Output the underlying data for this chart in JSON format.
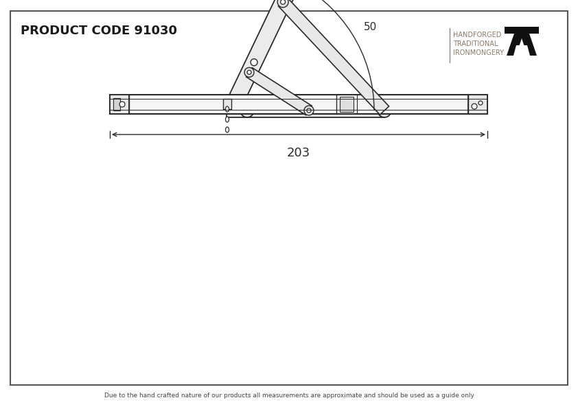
{
  "title": "PRODUCT CODE 91030",
  "footer": "Due to the hand crafted nature of our products all measurements are approximate and should be used as a guide only",
  "brand_line1": "HANDFORGED",
  "brand_line2": "TRADITIONAL",
  "brand_line3": "IRONMONGERY",
  "dim_length": "203",
  "dim_angle": "50",
  "bg_color": "#ffffff",
  "line_color": "#2a2a2a",
  "title_color": "#1a1a1a",
  "brand_color": "#8a7a6a",
  "footer_color": "#444444",
  "outer_border_color": "#555555"
}
